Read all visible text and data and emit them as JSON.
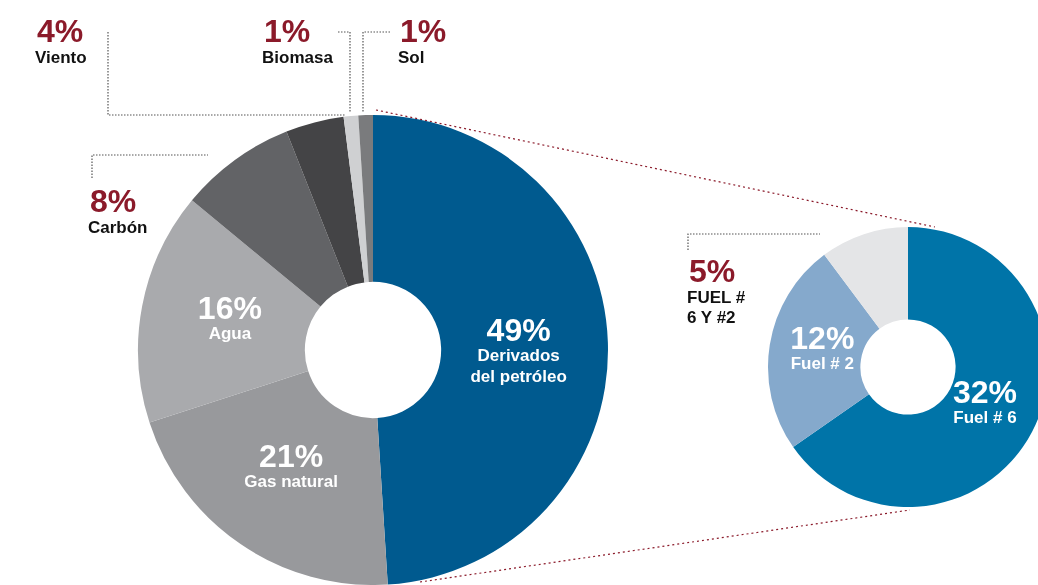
{
  "chart_data": [
    {
      "type": "donut",
      "categories": [
        "Derivados del petróleo",
        "Gas natural",
        "Agua",
        "Carbón",
        "Viento",
        "Biomasa",
        "Sol"
      ],
      "values": [
        49,
        21,
        16,
        8,
        4,
        1,
        1
      ],
      "value_labels": [
        "49%",
        "21%",
        "16%",
        "8%",
        "4%",
        "1%",
        "1%"
      ],
      "colors": [
        "#005a8f",
        "#98999c",
        "#a9aaad",
        "#626366",
        "#444446",
        "#cfd0d2",
        "#7a7b7d"
      ],
      "legend": false
    },
    {
      "type": "donut",
      "categories": [
        "Fuel # 6",
        "Fuel # 2",
        "FUEL # 6 Y #2"
      ],
      "values": [
        32,
        12,
        5
      ],
      "value_labels": [
        "32%",
        "12%",
        "5%"
      ],
      "colors": [
        "#0074a8",
        "#85a9cc",
        "#e4e5e7"
      ],
      "legend": false
    }
  ]
}
